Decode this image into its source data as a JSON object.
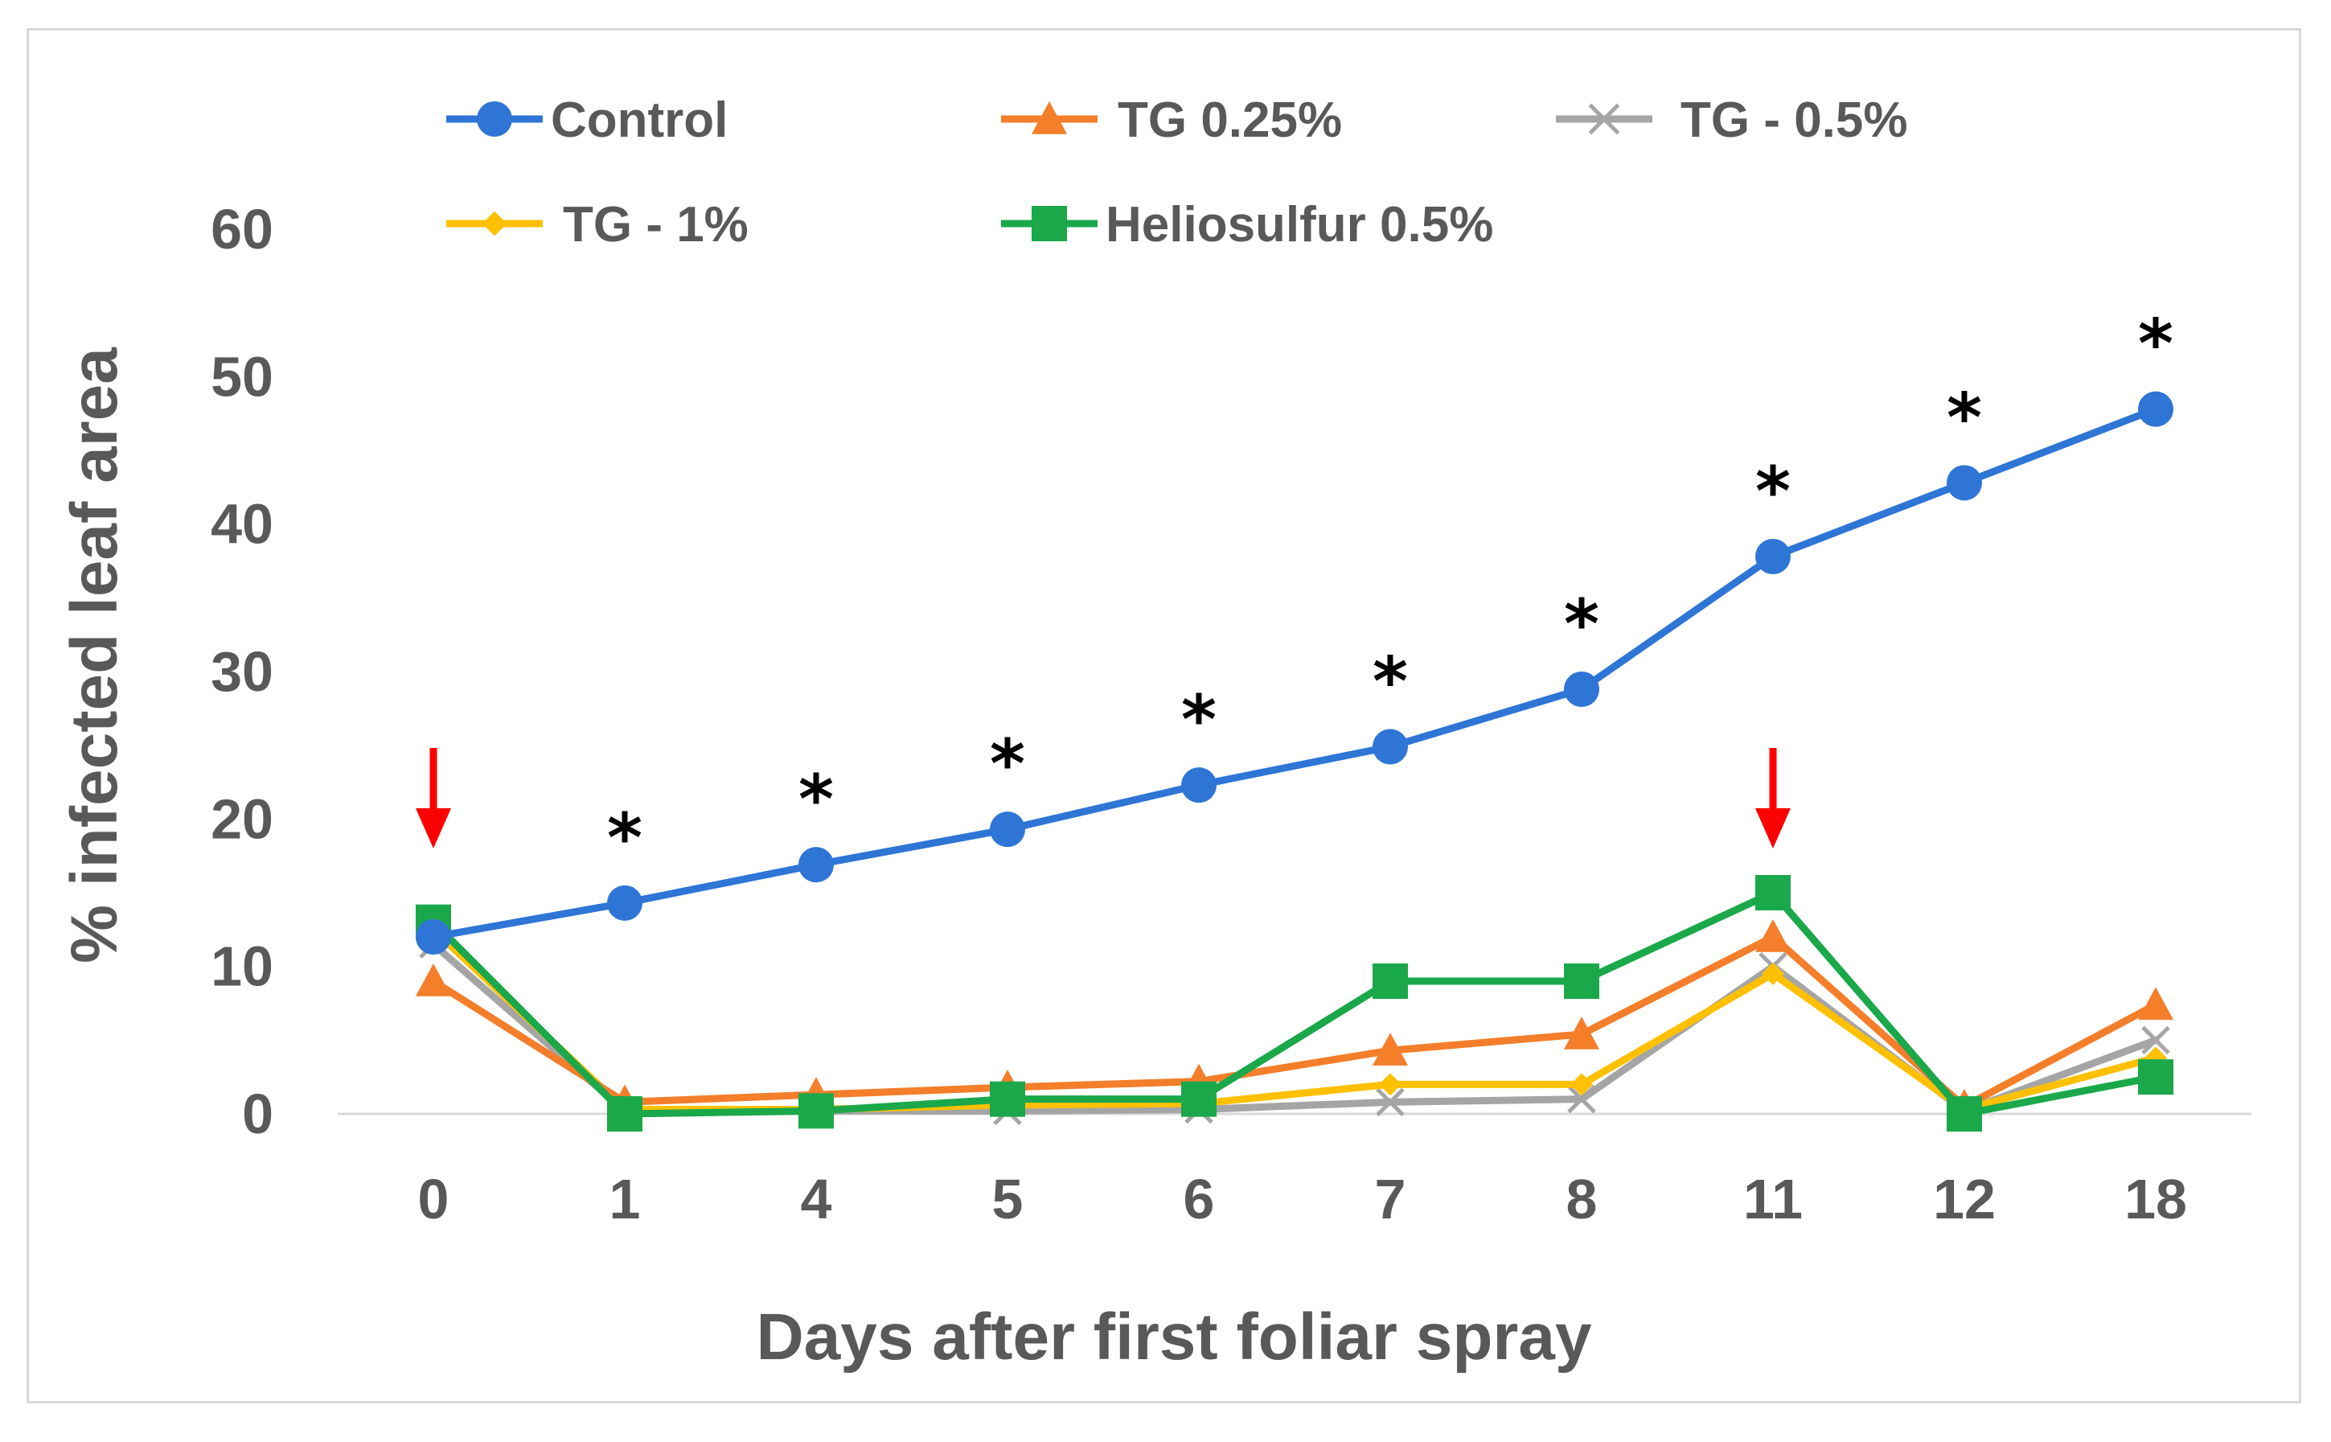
{
  "chart_data": {
    "type": "line",
    "title": "",
    "xlabel": "Days after first foliar spray",
    "ylabel": "% infected leaf area",
    "categories": [
      "0",
      "1",
      "4",
      "5",
      "6",
      "7",
      "8",
      "11",
      "12",
      "18"
    ],
    "ylim": [
      0,
      60
    ],
    "yticks": [
      "0",
      "10",
      "20",
      "30",
      "40",
      "50",
      "60"
    ],
    "grid": false,
    "legend_position": "top",
    "series": [
      {
        "name": "Control",
        "color": "#2E75D6",
        "marker": "circle",
        "values": [
          12,
          14.3,
          16.9,
          19.3,
          22.3,
          24.9,
          28.8,
          37.8,
          42.8,
          47.8
        ]
      },
      {
        "name": "TG 0.25%",
        "color": "#F47E2A",
        "marker": "triangle",
        "values": [
          9,
          0.8,
          1.3,
          1.8,
          2.2,
          4.3,
          5.4,
          12,
          0.5,
          7.4
        ]
      },
      {
        "name": "TG - 0.5%",
        "color": "#A5A5A5",
        "marker": "x",
        "values": [
          11.5,
          0.2,
          0.2,
          0.2,
          0.3,
          0.8,
          1.0,
          10,
          0.2,
          5
        ]
      },
      {
        "name": "TG - 1%",
        "color": "#FFC000",
        "marker": "diamond",
        "values": [
          12.5,
          0.3,
          0.3,
          0.6,
          0.7,
          2.0,
          2.0,
          9.5,
          0.3,
          3.8
        ]
      },
      {
        "name": "Heliosulfur 0.5%",
        "color": "#1BA84A",
        "marker": "square",
        "values": [
          13,
          0,
          0.2,
          1.0,
          1.0,
          9,
          9,
          15,
          0,
          2.5
        ]
      }
    ],
    "annotations": {
      "asterisk_symbol": "*",
      "asterisks_at": [
        "1",
        "4",
        "5",
        "6",
        "7",
        "8",
        "11",
        "12",
        "18"
      ],
      "arrow_color": "#FF0000",
      "arrows_at": [
        "0",
        "11"
      ]
    }
  }
}
